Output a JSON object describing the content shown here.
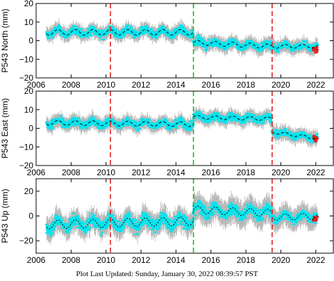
{
  "footer": "Plot Last Updated:   Sunday, January 30, 2022 08:39:57 PST",
  "colors": {
    "error_bar": "#b8b8b8",
    "data": "#00e5ee",
    "recent": "#e02020",
    "model": "#000000",
    "event_red": "#e02020",
    "event_green": "#22b022"
  },
  "chart_data": [
    {
      "type": "scatter",
      "ylabel": "P543 North (mm)",
      "xlim": [
        2006,
        2023
      ],
      "ylim": [
        -20,
        20
      ],
      "xticks": [
        2006,
        2008,
        2010,
        2012,
        2014,
        2016,
        2018,
        2020,
        2022
      ],
      "yticks": [
        -20,
        -10,
        0,
        10,
        20
      ],
      "x_tick_labels": [
        "2006",
        "2008",
        "2010",
        "2012",
        "2014",
        "2016",
        "2018",
        "2020",
        "2022"
      ],
      "y_tick_labels": [
        "−20",
        "−10",
        "0",
        "10",
        "20"
      ],
      "vlines": [
        {
          "x": 2010.25,
          "color": "red"
        },
        {
          "x": 2015.0,
          "color": "green"
        },
        {
          "x": 2019.5,
          "color": "red"
        }
      ],
      "segments": [
        {
          "x0": 2006.6,
          "x1": 2015.0,
          "level": 4.5,
          "slope": 0,
          "amp": 1.5,
          "spread": 3,
          "err": 3
        },
        {
          "x0": 2015.0,
          "x1": 2019.5,
          "level": -1,
          "slope": -0.45,
          "amp": 1.2,
          "spread": 3,
          "err": 3
        },
        {
          "x0": 2019.5,
          "x1": 2022.1,
          "level": -3,
          "slope": 0,
          "amp": 1.0,
          "spread": 2.5,
          "err": 3
        }
      ],
      "recent_range": [
        2021.85,
        2022.1
      ],
      "recent_level": -4.5
    },
    {
      "type": "scatter",
      "ylabel": "P543 East (mm)",
      "xlim": [
        2006,
        2023
      ],
      "ylim": [
        -20,
        20
      ],
      "xticks": [
        2006,
        2008,
        2010,
        2012,
        2014,
        2016,
        2018,
        2020,
        2022
      ],
      "yticks": [
        -20,
        -10,
        0,
        10,
        20
      ],
      "x_tick_labels": [
        "2006",
        "2008",
        "2010",
        "2012",
        "2014",
        "2016",
        "2018",
        "2020",
        "2022"
      ],
      "y_tick_labels": [
        "−20",
        "−10",
        "0",
        "10",
        "20"
      ],
      "vlines": [
        {
          "x": 2010.25,
          "color": "red"
        },
        {
          "x": 2015.0,
          "color": "green"
        },
        {
          "x": 2019.5,
          "color": "red"
        }
      ],
      "segments": [
        {
          "x0": 2006.6,
          "x1": 2015.0,
          "level": 3,
          "slope": -0.1,
          "amp": 1.3,
          "spread": 3,
          "err": 3
        },
        {
          "x0": 2015.0,
          "x1": 2019.5,
          "level": 6,
          "slope": -0.2,
          "amp": 1.0,
          "spread": 3,
          "err": 3
        },
        {
          "x0": 2019.5,
          "x1": 2022.1,
          "level": -2,
          "slope": -1.3,
          "amp": 0.8,
          "spread": 2.5,
          "err": 3
        }
      ],
      "recent_range": [
        2021.85,
        2022.1
      ],
      "recent_level": -5
    },
    {
      "type": "scatter",
      "ylabel": "P543 Up (mm)",
      "xlim": [
        2006,
        2023
      ],
      "ylim": [
        -30,
        30
      ],
      "xticks": [
        2006,
        2008,
        2010,
        2012,
        2014,
        2016,
        2018,
        2020,
        2022
      ],
      "yticks": [
        -20,
        0,
        20
      ],
      "x_tick_labels": [
        "2006",
        "2008",
        "2010",
        "2012",
        "2014",
        "2016",
        "2018",
        "2020",
        "2022"
      ],
      "y_tick_labels": [
        "−20",
        "0",
        "20"
      ],
      "vlines": [
        {
          "x": 2010.25,
          "color": "red"
        },
        {
          "x": 2015.0,
          "color": "green"
        },
        {
          "x": 2019.5,
          "color": "red"
        }
      ],
      "segments": [
        {
          "x0": 2006.6,
          "x1": 2015.0,
          "level": -7,
          "slope": 0.35,
          "amp": 3.5,
          "spread": 7,
          "err": 7
        },
        {
          "x0": 2015.0,
          "x1": 2019.5,
          "level": 5,
          "slope": -0.6,
          "amp": 3.0,
          "spread": 7,
          "err": 8
        },
        {
          "x0": 2019.5,
          "x1": 2022.1,
          "level": -1,
          "slope": 0.3,
          "amp": 2.5,
          "spread": 5,
          "err": 7
        }
      ],
      "recent_range": [
        2021.85,
        2022.1
      ],
      "recent_level": -2
    }
  ]
}
